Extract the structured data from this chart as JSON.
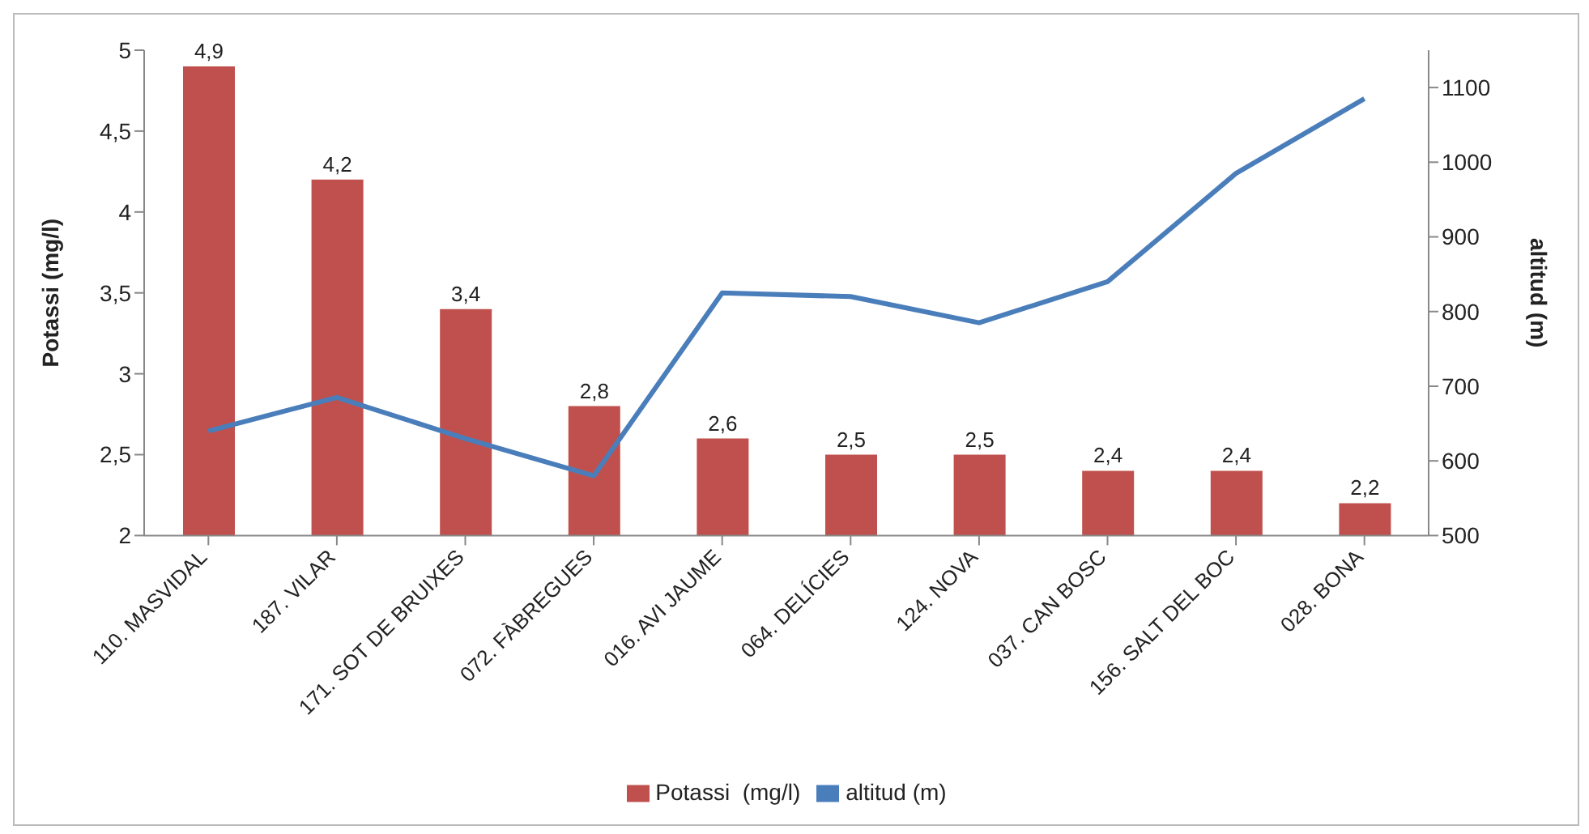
{
  "chart_data": {
    "type": "bar",
    "ylabel": "Potassi  (mg/l)",
    "y2label": "altitud (m)",
    "categories": [
      "110. MASVIDAL",
      "187. VILAR",
      "171. SOT DE BRUIXES",
      "072. FÀBREGUES",
      "016. AVI JAUME",
      "064. DELÍCIES",
      "124. NOVA",
      "037. CAN BOSC",
      "156. SALT DEL BOC",
      "028. BONA"
    ],
    "series": [
      {
        "name": "Potassi  (mg/l)",
        "color": "#c0504d",
        "values": [
          4.9,
          4.2,
          3.4,
          2.8,
          2.6,
          2.5,
          2.5,
          2.4,
          2.4,
          2.2
        ],
        "value_labels": [
          "4,9",
          "4,2",
          "3,4",
          "2,8",
          "2,6",
          "2,5",
          "2,5",
          "2,4",
          "2,4",
          "2,2"
        ]
      },
      {
        "name": "altitud (m)",
        "type": "line",
        "axis": "y2",
        "color": "#4a7ebb",
        "values": [
          640,
          685,
          630,
          580,
          825,
          820,
          785,
          840,
          985,
          1085
        ]
      }
    ],
    "ylim": [
      2,
      5
    ],
    "yticks": [
      2,
      {
        "value": 2.5,
        "label": "2,5"
      },
      3,
      {
        "value": 3.5,
        "label": "3,5"
      },
      4,
      {
        "value": 4.5,
        "label": "4,5"
      },
      5
    ],
    "y2lim": [
      500,
      1150
    ],
    "y2ticks": [
      500,
      600,
      700,
      800,
      900,
      1000,
      1100
    ],
    "legend": "bottom",
    "marker": "none"
  }
}
